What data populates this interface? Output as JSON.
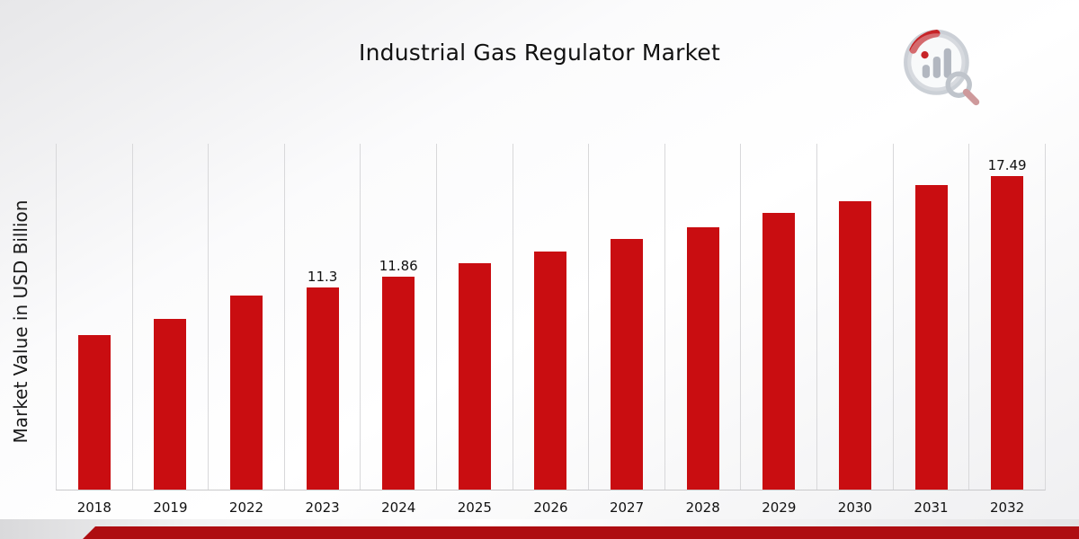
{
  "page": {
    "title": "Industrial Gas Regulator Market",
    "logo": "market-research-analytics-logo"
  },
  "colors": {
    "bar": "#c90d11",
    "bottom_band": "#ae0d11",
    "gridline": "#d8d8da",
    "logo_gray": "#bcc1c9",
    "logo_red": "#c20d11"
  },
  "chart_data": {
    "type": "bar",
    "title": "Industrial Gas Regulator Market",
    "xlabel": "",
    "ylabel": "Market Value in USD Billion",
    "categories": [
      "2018",
      "2019",
      "2022",
      "2023",
      "2024",
      "2025",
      "2026",
      "2027",
      "2028",
      "2029",
      "2030",
      "2031",
      "2032"
    ],
    "values": [
      8.6,
      9.5,
      10.85,
      11.3,
      11.86,
      12.65,
      13.3,
      14.0,
      14.65,
      15.45,
      16.1,
      17.0,
      17.49
    ],
    "data_labels": [
      "",
      "",
      "",
      "11.3",
      "11.86",
      "",
      "",
      "",
      "",
      "",
      "",
      "",
      "17.49"
    ],
    "ylim": [
      0,
      19.3
    ],
    "grid": "vertical-only",
    "legend": "none",
    "bar_color": "#c90d11"
  }
}
